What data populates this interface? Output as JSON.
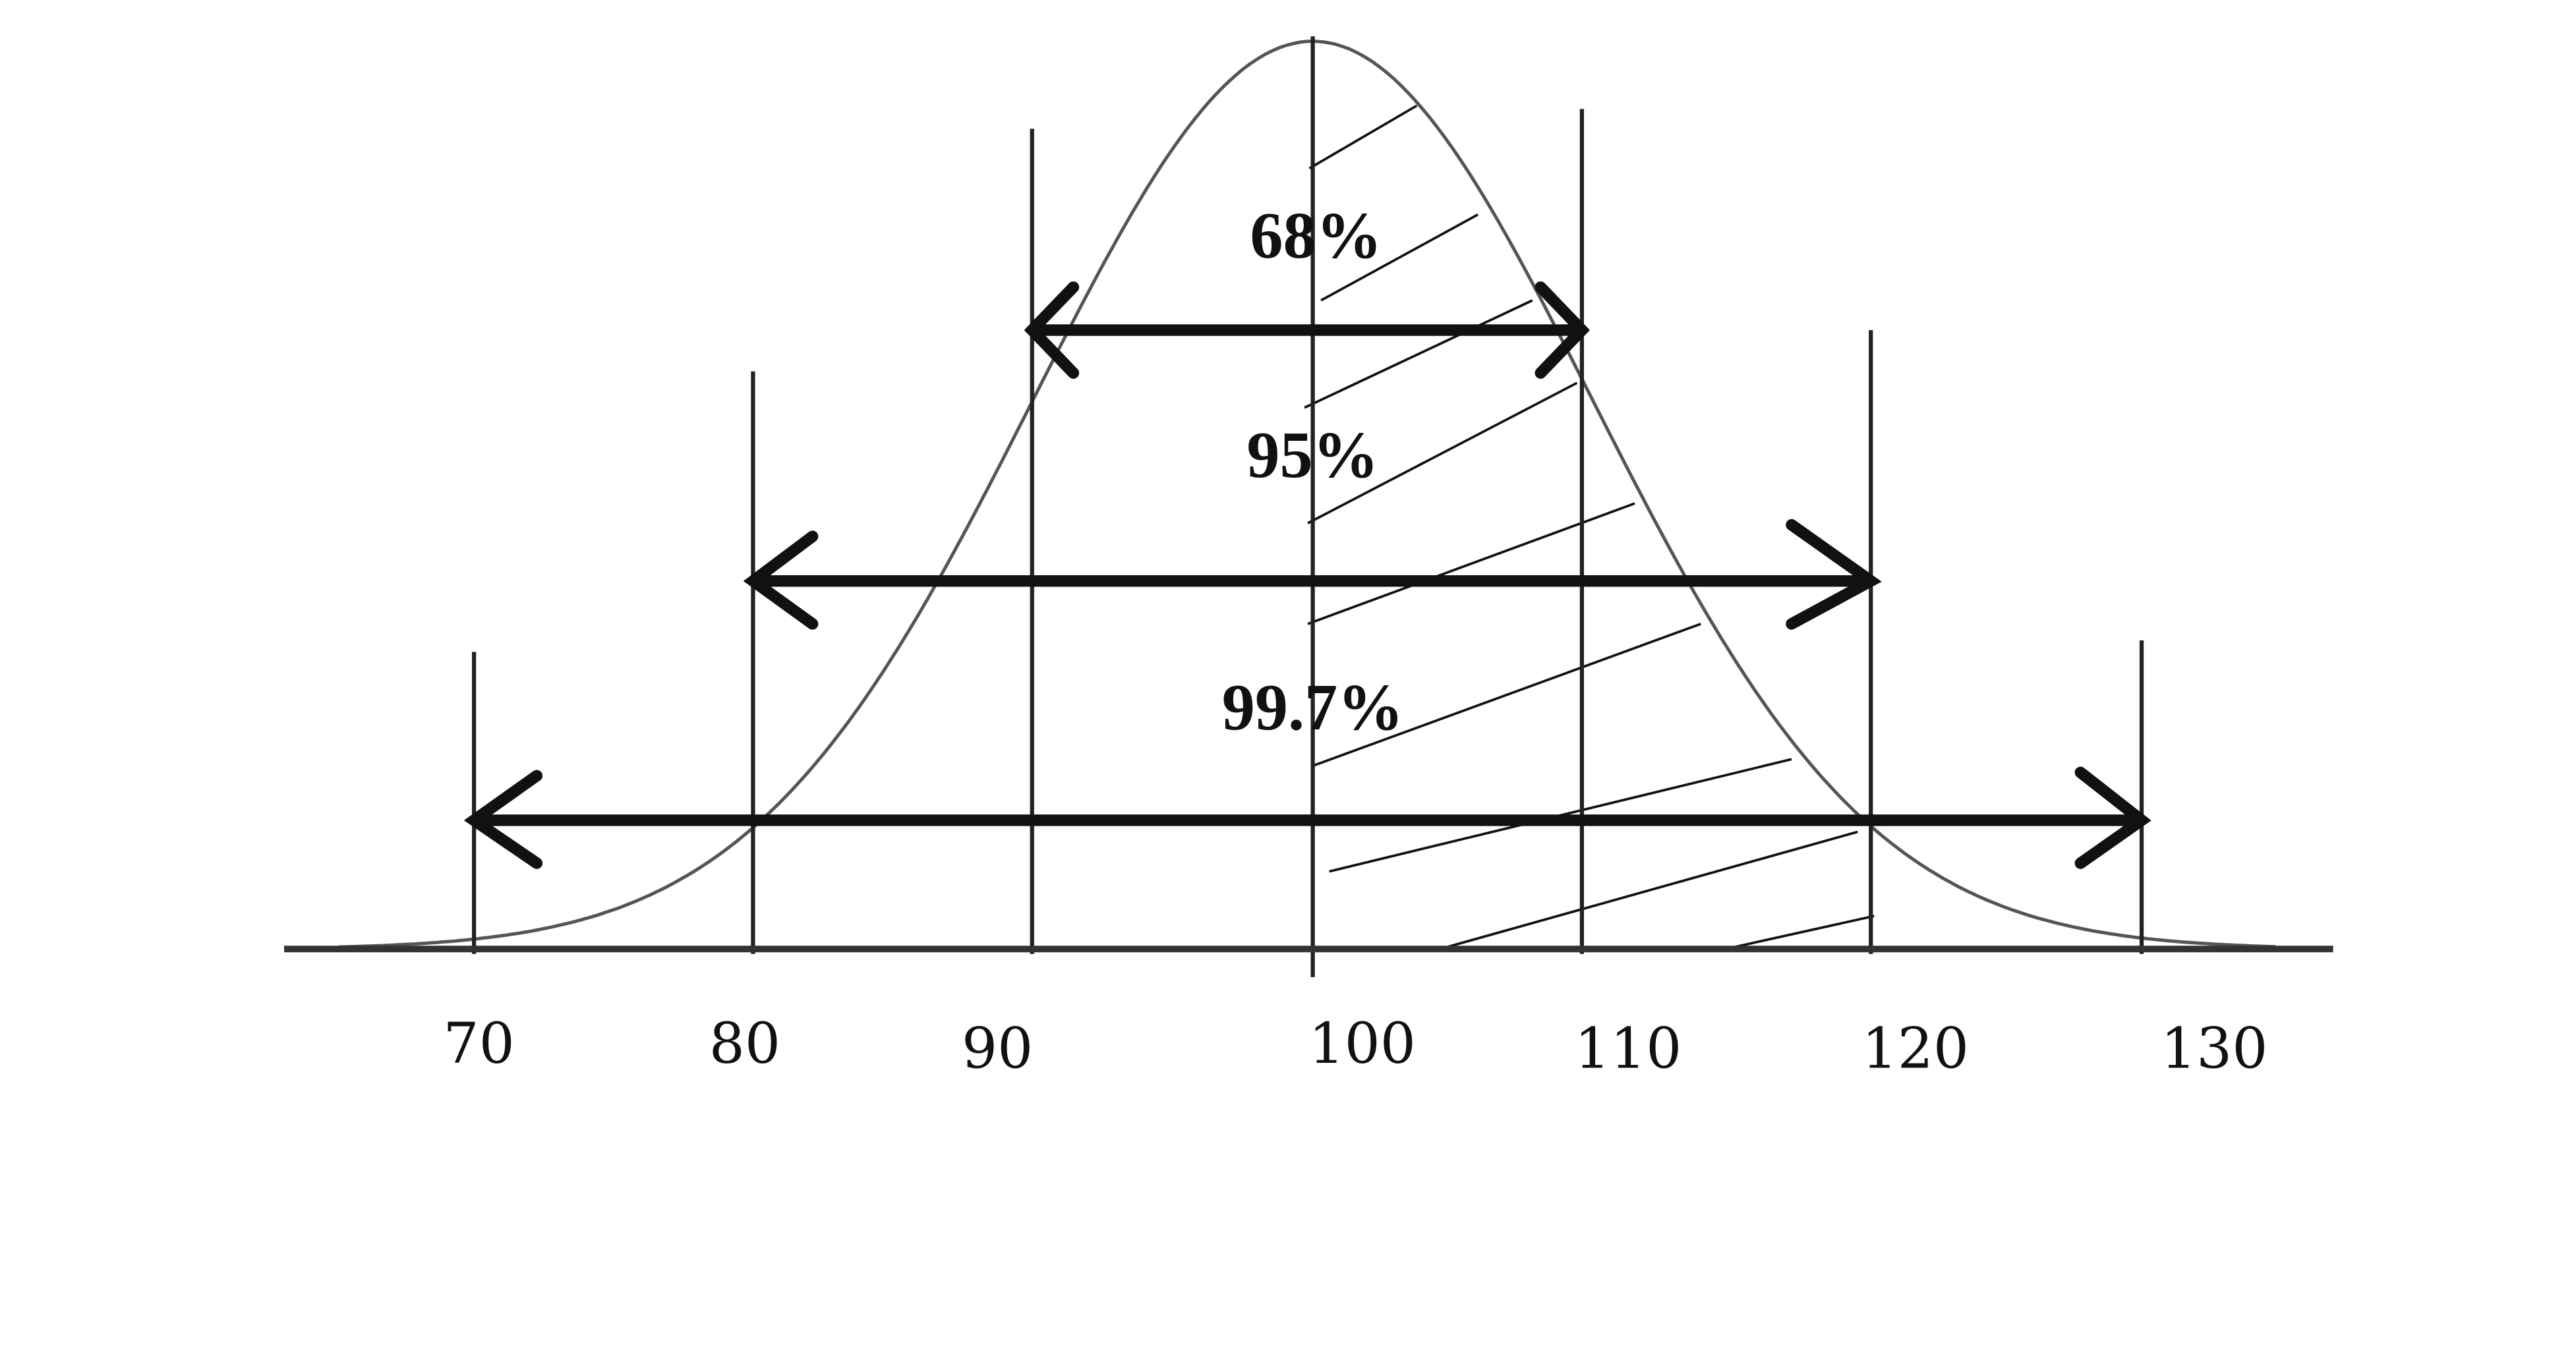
{
  "percent_labels": [
    "68%",
    "95%",
    "99.7%"
  ],
  "axis_labels": [
    "70",
    "80",
    "90",
    "100",
    "110",
    "120",
    "130"
  ]
}
